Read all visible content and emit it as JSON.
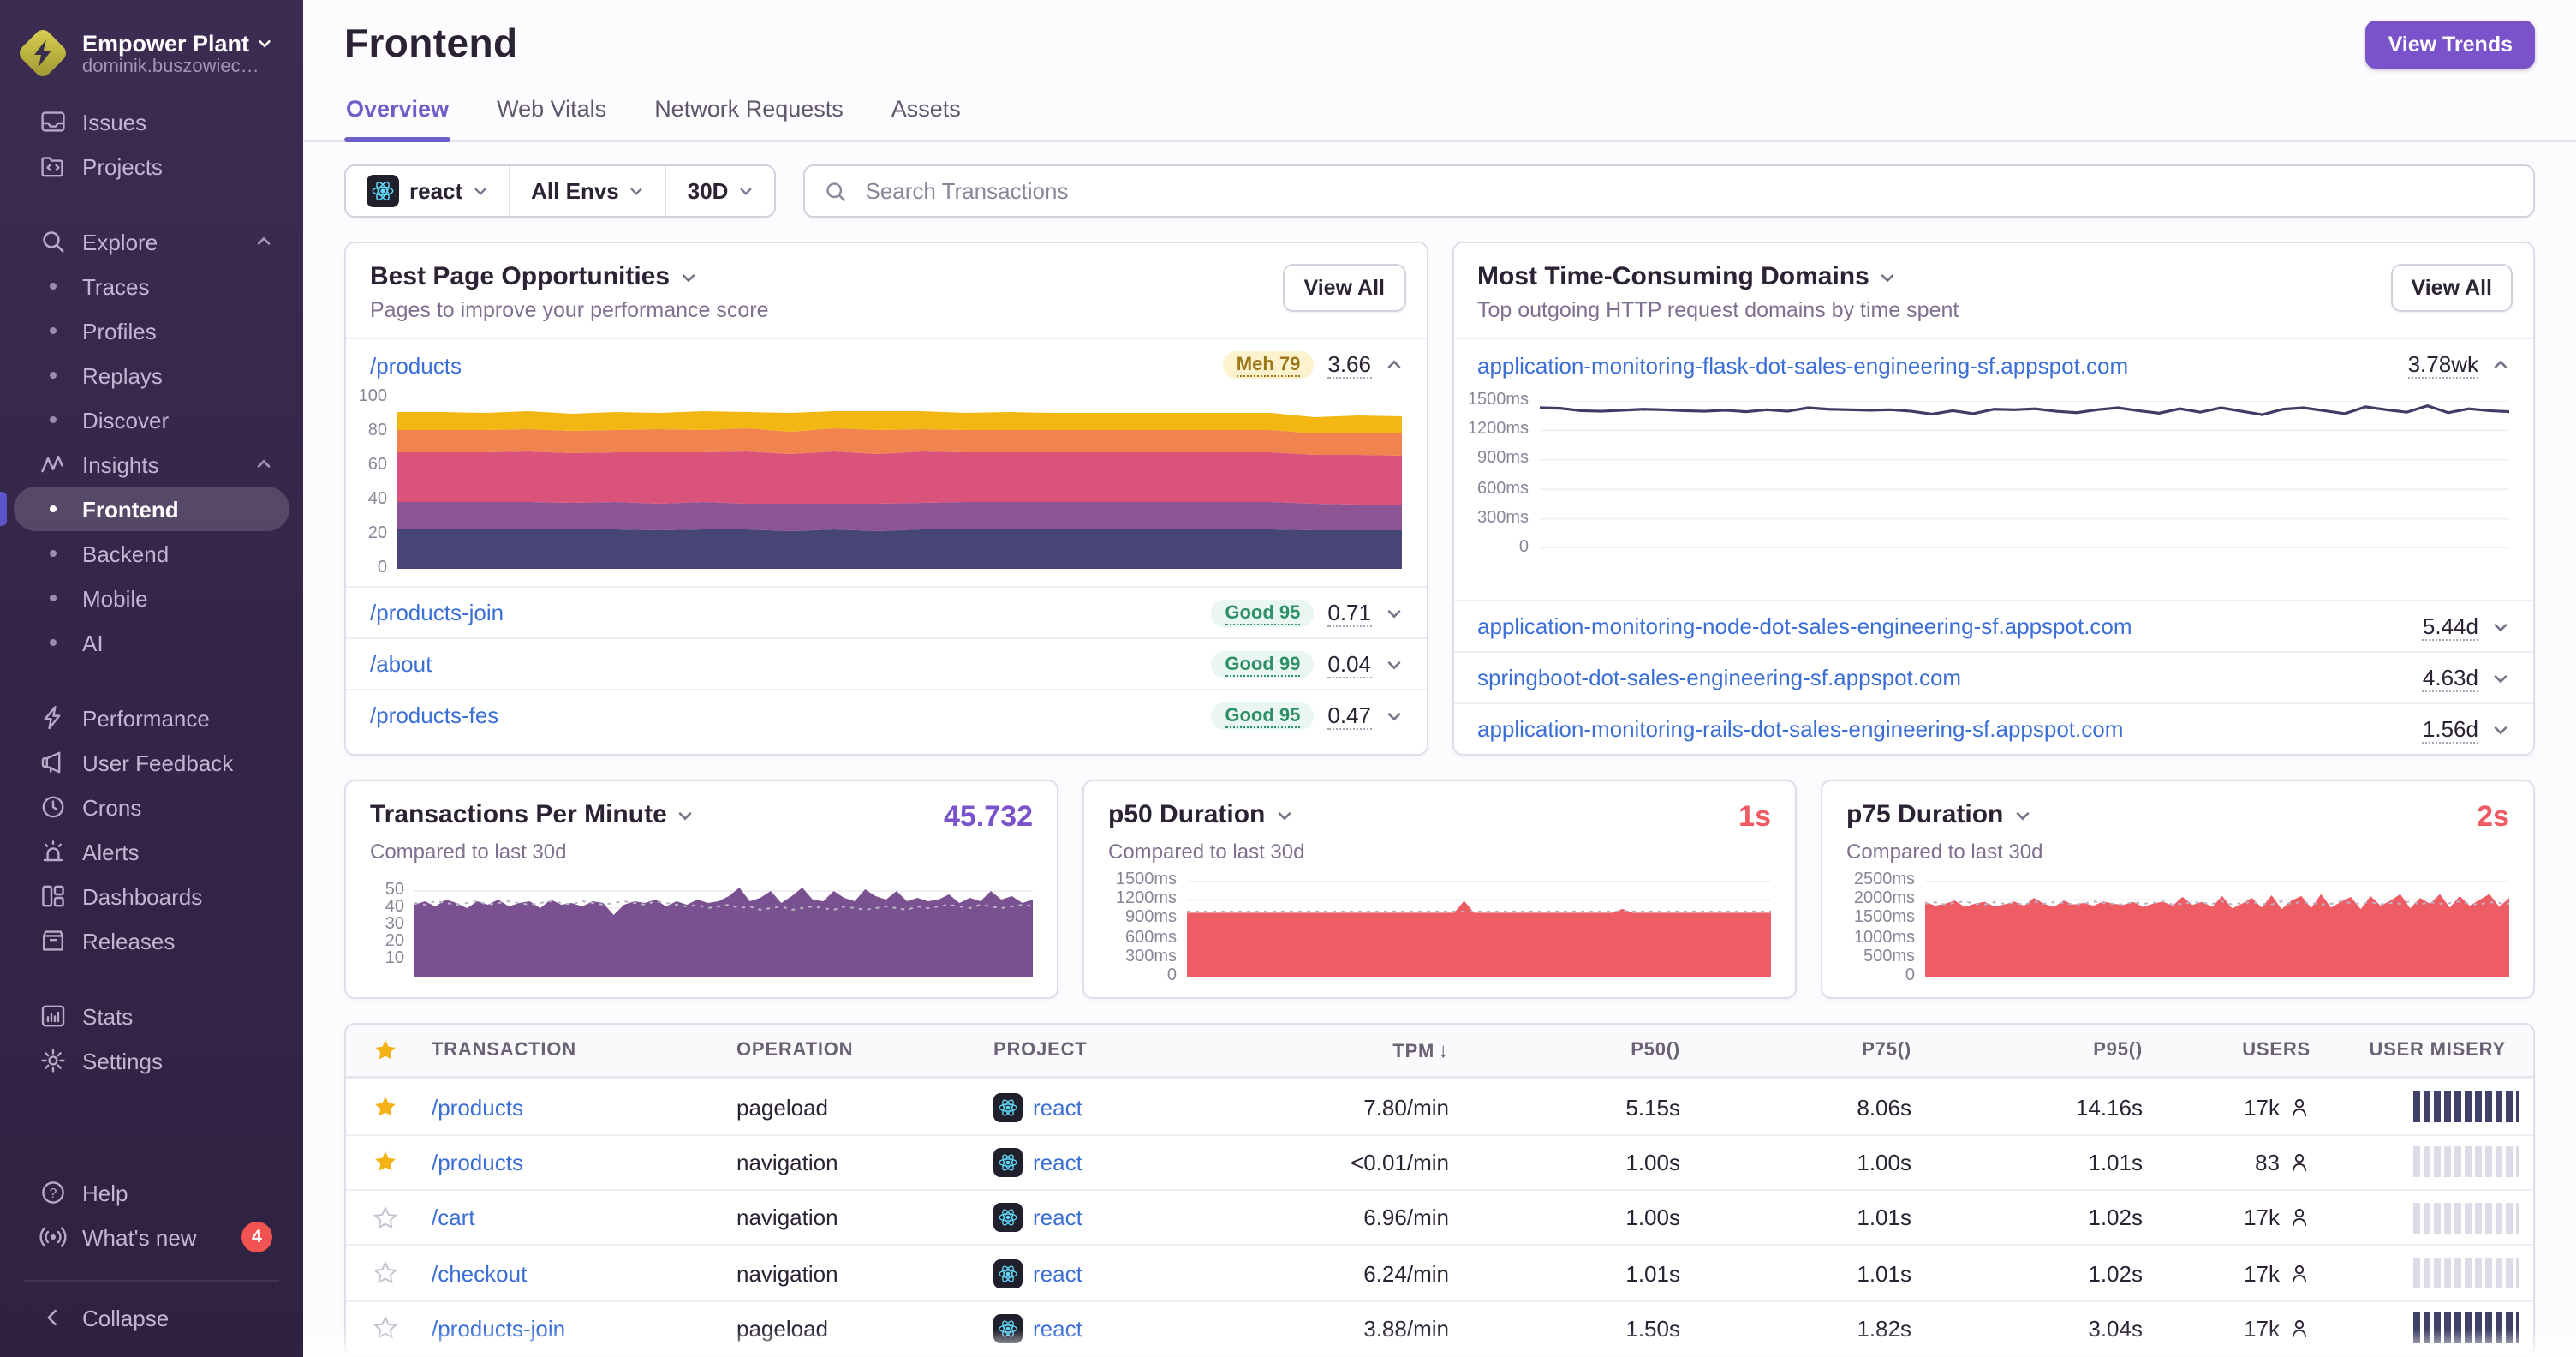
{
  "sidebar": {
    "org": {
      "name": "Empower Plant",
      "subtitle": "dominik.buszowiec…"
    },
    "nav": {
      "issues": "Issues",
      "projects": "Projects",
      "explore": "Explore",
      "traces": "Traces",
      "profiles": "Profiles",
      "replays": "Replays",
      "discover": "Discover",
      "insights": "Insights",
      "frontend": "Frontend",
      "backend": "Backend",
      "mobile": "Mobile",
      "ai": "AI",
      "performance": "Performance",
      "user_feedback": "User Feedback",
      "crons": "Crons",
      "alerts": "Alerts",
      "dashboards": "Dashboards",
      "releases": "Releases",
      "stats": "Stats",
      "settings": "Settings",
      "help": "Help",
      "whats_new": "What's new",
      "whats_new_badge": "4",
      "collapse": "Collapse"
    }
  },
  "header": {
    "title": "Frontend",
    "tabs": [
      "Overview",
      "Web Vitals",
      "Network Requests",
      "Assets"
    ],
    "view_trends": "View Trends"
  },
  "filters": {
    "project": "react",
    "env": "All Envs",
    "period": "30D",
    "search_placeholder": "Search Transactions"
  },
  "cards": {
    "best_pages": {
      "title": "Best Page Opportunities",
      "subtitle": "Pages to improve your performance score",
      "view_all": "View All",
      "rows": [
        {
          "path": "/products",
          "badge": "Meh 79",
          "value": "3.66"
        },
        {
          "path": "/products-join",
          "badge": "Good 95",
          "value": "0.71"
        },
        {
          "path": "/about",
          "badge": "Good 99",
          "value": "0.04"
        },
        {
          "path": "/products-fes",
          "badge": "Good 95",
          "value": "0.47"
        }
      ]
    },
    "domains": {
      "title": "Most Time-Consuming Domains",
      "subtitle": "Top outgoing HTTP request domains by time spent",
      "view_all": "View All",
      "rows": [
        {
          "domain": "application-monitoring-flask-dot-sales-engineering-sf.appspot.com",
          "value": "3.78wk"
        },
        {
          "domain": "application-monitoring-node-dot-sales-engineering-sf.appspot.com",
          "value": "5.44d"
        },
        {
          "domain": "springboot-dot-sales-engineering-sf.appspot.com",
          "value": "4.63d"
        },
        {
          "domain": "application-monitoring-rails-dot-sales-engineering-sf.appspot.com",
          "value": "1.56d"
        }
      ]
    }
  },
  "metrics": [
    {
      "title": "Transactions Per Minute",
      "subtitle": "Compared to last 30d",
      "value": "45.732"
    },
    {
      "title": "p50 Duration",
      "subtitle": "Compared to last 30d",
      "value": "1s"
    },
    {
      "title": "p75 Duration",
      "subtitle": "Compared to last 30d",
      "value": "2s"
    }
  ],
  "table": {
    "columns": [
      "Transaction",
      "Operation",
      "Project",
      "TPM",
      "P50()",
      "P75()",
      "P95()",
      "Users",
      "User Misery"
    ],
    "sort_column": "TPM",
    "rows": [
      {
        "transaction": "/products",
        "operation": "pageload",
        "project": "react",
        "tpm": "7.80/min",
        "p50": "5.15s",
        "p75": "8.06s",
        "p95": "14.16s",
        "users": "17k"
      },
      {
        "transaction": "/products",
        "operation": "navigation",
        "project": "react",
        "tpm": "<0.01/min",
        "p50": "1.00s",
        "p75": "1.00s",
        "p95": "1.01s",
        "users": "83"
      },
      {
        "transaction": "/cart",
        "operation": "navigation",
        "project": "react",
        "tpm": "6.96/min",
        "p50": "1.00s",
        "p75": "1.01s",
        "p95": "1.02s",
        "users": "17k"
      },
      {
        "transaction": "/checkout",
        "operation": "navigation",
        "project": "react",
        "tpm": "6.24/min",
        "p50": "1.01s",
        "p75": "1.01s",
        "p95": "1.02s",
        "users": "17k"
      },
      {
        "transaction": "/products-join",
        "operation": "pageload",
        "project": "react",
        "tpm": "3.88/min",
        "p50": "1.50s",
        "p75": "1.82s",
        "p95": "3.04s",
        "users": "17k"
      }
    ]
  },
  "chart_data": [
    {
      "id": "page_score",
      "type": "area",
      "stacked": true,
      "title": "Best Page Opportunities — /products performance score breakdown (stacked web-vital components)",
      "ymax": 100,
      "yticks": [
        "100",
        "80",
        "60",
        "40",
        "20",
        "0"
      ],
      "ytick_values": [
        100,
        80,
        60,
        40,
        20,
        0
      ],
      "series": [
        {
          "name": "layer-1",
          "color": "#464575",
          "values": [
            23,
            23,
            23,
            23,
            23,
            23,
            22.5,
            23,
            23,
            22,
            23,
            22,
            23,
            23,
            23,
            23,
            23,
            23,
            23,
            23,
            23,
            22.5,
            22.5,
            22.5
          ]
        },
        {
          "name": "layer-2",
          "color": "#8d5494",
          "values": [
            16,
            16,
            16,
            16,
            15.5,
            16,
            15.5,
            16,
            15,
            16,
            15,
            16,
            15.5,
            16,
            16,
            16,
            16,
            16,
            16,
            16,
            16,
            15.5,
            15,
            15
          ]
        },
        {
          "name": "layer-3",
          "color": "#d9537b",
          "values": [
            29,
            29,
            29,
            29.5,
            29,
            29,
            30,
            29,
            30.5,
            29,
            30.5,
            29,
            30,
            29,
            29,
            29,
            29,
            29,
            29,
            29,
            29,
            28.5,
            29,
            28.5
          ]
        },
        {
          "name": "layer-4",
          "color": "#f0834e",
          "values": [
            13,
            13,
            13,
            13,
            13,
            13,
            13.5,
            13,
            13.5,
            13,
            13.5,
            14,
            13,
            13,
            13,
            13,
            13,
            13,
            13,
            13,
            13,
            12.5,
            13,
            13
          ]
        },
        {
          "name": "layer-5",
          "color": "#f2b712",
          "values": [
            10.5,
            10.5,
            10,
            10.5,
            10,
            10.5,
            9.5,
            11,
            9.5,
            11,
            10,
            11,
            10.5,
            10,
            10.5,
            10,
            10,
            10,
            10,
            10,
            10,
            9.5,
            10,
            10
          ]
        }
      ]
    },
    {
      "id": "domain_duration",
      "type": "line",
      "title": "application-monitoring-flask-dot-sales-engineering-sf.appspot.com avg duration (ms)",
      "color": "#3f3c66",
      "ymax": 1500,
      "yticks": [
        "1500ms",
        "1200ms",
        "900ms",
        "600ms",
        "300ms",
        "0"
      ],
      "ytick_values": [
        1500,
        1200,
        900,
        600,
        300,
        0
      ],
      "values": [
        1430,
        1425,
        1400,
        1395,
        1405,
        1415,
        1410,
        1400,
        1395,
        1405,
        1390,
        1410,
        1395,
        1430,
        1415,
        1410,
        1405,
        1410,
        1395,
        1365,
        1400,
        1370,
        1415,
        1410,
        1420,
        1395,
        1380,
        1410,
        1430,
        1400,
        1375,
        1420,
        1385,
        1430,
        1395,
        1360,
        1415,
        1430,
        1400,
        1370,
        1440,
        1410,
        1385,
        1450,
        1380,
        1420,
        1400,
        1390
      ]
    },
    {
      "id": "tpm",
      "type": "area",
      "title": "Transactions Per Minute (current ~45.732/min vs previous 30d dotted)",
      "color": "#7a5190",
      "ymax": 56,
      "yticks": [
        "50",
        "40",
        "30",
        "20",
        "10"
      ],
      "ytick_values": [
        50,
        40,
        30,
        20,
        10
      ],
      "values": [
        42,
        44,
        41,
        45,
        43,
        40,
        44,
        42,
        45,
        41,
        43,
        44,
        40,
        45,
        42,
        43,
        41,
        44,
        43,
        36,
        42,
        44,
        43,
        45,
        41,
        44,
        42,
        45,
        43,
        44,
        47,
        52,
        44,
        46,
        50,
        43,
        47,
        52,
        45,
        44,
        50,
        46,
        44,
        51,
        47,
        45,
        50,
        44,
        46,
        44,
        45,
        48,
        43,
        46,
        44,
        50,
        45,
        47,
        43,
        45
      ],
      "compare": [
        43,
        42,
        44,
        43,
        42,
        43,
        44,
        42,
        43,
        44,
        43,
        42,
        43,
        44,
        43,
        42,
        44,
        43,
        42,
        43,
        44,
        43,
        42,
        44,
        43,
        42,
        41,
        42,
        40,
        41,
        42,
        40,
        41,
        39,
        40,
        41,
        39,
        40,
        41,
        40,
        39,
        41,
        40,
        39,
        40,
        41,
        40,
        39,
        41,
        40,
        41,
        42,
        41,
        40,
        42,
        41,
        40,
        41,
        42,
        41
      ]
    },
    {
      "id": "p50",
      "type": "area",
      "title": "p50 Duration ~1s flat with brief spikes (vs previous 30d dotted)",
      "color": "#ee5c64",
      "ymax": 1500,
      "yticks": [
        "1500ms",
        "1200ms",
        "900ms",
        "600ms",
        "300ms",
        "0"
      ],
      "ytick_values": [
        1500,
        1200,
        900,
        600,
        300,
        0
      ],
      "values": [
        1000,
        1000,
        1000,
        1000,
        1000,
        1000,
        1000,
        1000,
        1000,
        1000,
        1000,
        1000,
        1000,
        1000,
        1000,
        1000,
        1000,
        1000,
        1000,
        1000,
        1000,
        1000,
        1000,
        1000,
        1000,
        1000,
        1000,
        1000,
        1185,
        1000,
        1000,
        1000,
        1000,
        1000,
        1000,
        1000,
        1000,
        1000,
        1000,
        1000,
        1000,
        1000,
        1000,
        1000,
        1060,
        1000,
        1000,
        1000,
        1000,
        1000,
        1000,
        1000,
        1000,
        1000,
        1000,
        1000,
        1000,
        1000,
        1000,
        1000
      ],
      "compare": [
        1020,
        1020,
        1020,
        1020,
        1020,
        1020,
        1020,
        1020,
        1020,
        1020,
        1020,
        1020,
        1020,
        1020,
        1020,
        1020,
        1020,
        1020,
        1020,
        1020,
        1020,
        1020,
        1020,
        1020,
        1020,
        1020,
        1020,
        1020,
        1020,
        1020,
        1020,
        1020,
        1020,
        1020,
        1020,
        1020,
        1020,
        1020,
        1020,
        1020,
        1020,
        1020,
        1020,
        1020,
        1020,
        1020,
        1020,
        1020,
        1020,
        1020,
        1020,
        1020,
        1020,
        1020,
        1020,
        1020,
        1020,
        1020,
        1020,
        1020
      ]
    },
    {
      "id": "p75",
      "type": "area",
      "title": "p75 Duration ~2s jagged (vs previous 30d dotted)",
      "color": "#ee5c64",
      "ymax": 2500,
      "yticks": [
        "2500ms",
        "2000ms",
        "1500ms",
        "1000ms",
        "500ms",
        "0"
      ],
      "ytick_values": [
        2500,
        2000,
        1500,
        1000,
        500,
        0
      ],
      "values": [
        1950,
        1850,
        1900,
        1980,
        1820,
        1900,
        1950,
        1830,
        1880,
        1960,
        1850,
        2050,
        1900,
        1820,
        1980,
        1880,
        1920,
        1850,
        1960,
        1900,
        1870,
        1950,
        1820,
        1900,
        1960,
        1850,
        2080,
        1870,
        1950,
        1820,
        2100,
        1780,
        1900,
        2050,
        1800,
        2120,
        1760,
        1980,
        2100,
        1790,
        2150,
        1800,
        1950,
        2080,
        1760,
        2100,
        1850,
        1980,
        2150,
        1780,
        2050,
        1900,
        2150,
        1800,
        2100,
        1850,
        2000,
        2150,
        1820,
        2050
      ],
      "compare": [
        1900,
        1940,
        1880,
        1920,
        1960,
        1900,
        1880,
        1940,
        1900,
        1920,
        1880,
        1960,
        1900,
        1940,
        1920,
        1880,
        1900,
        1960,
        1920,
        1900,
        1880,
        1940,
        1900,
        1920,
        1960,
        1880,
        1900,
        1940,
        1920,
        1900,
        1960,
        1880,
        1920,
        1940,
        1900,
        1880,
        1960,
        1900,
        1940,
        1920,
        1880,
        1900,
        1960,
        1920,
        1900,
        1940,
        1880,
        1920,
        1900,
        1960,
        1880,
        1940,
        1900,
        1920,
        1960,
        1900,
        1880,
        1940,
        1920,
        1900
      ]
    }
  ]
}
